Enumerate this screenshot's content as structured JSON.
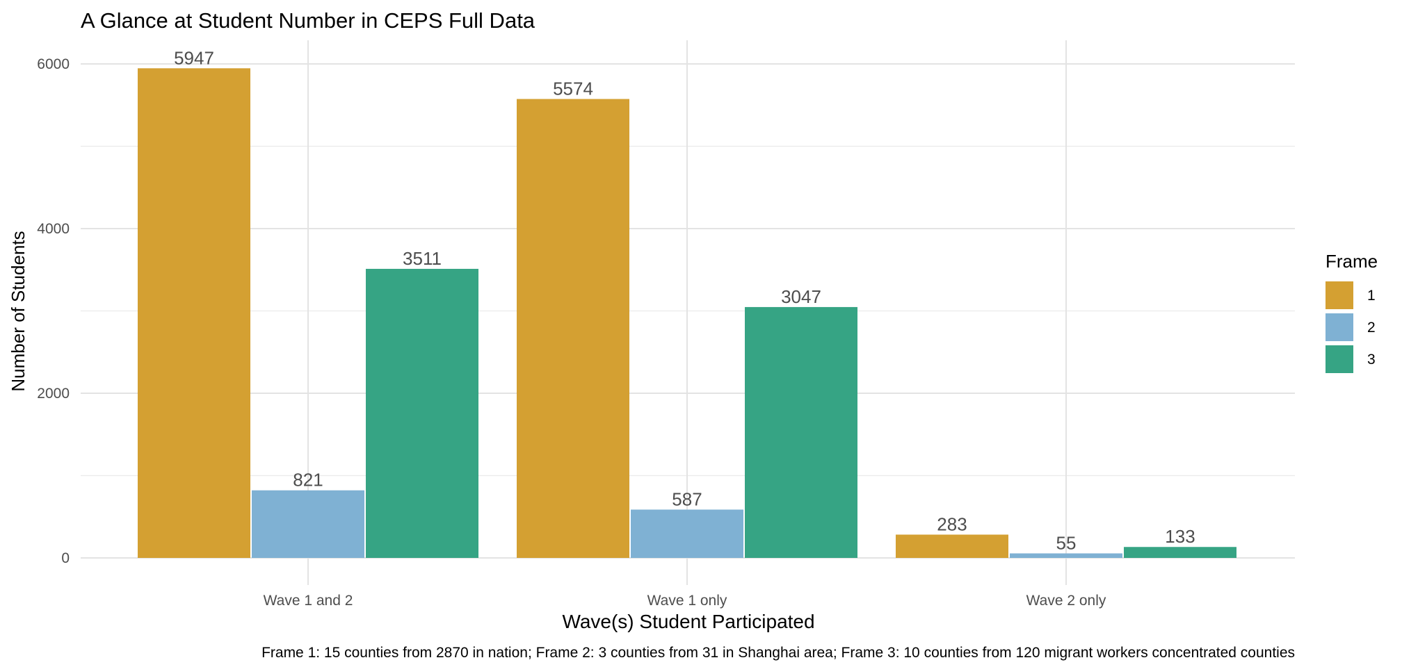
{
  "chart_data": {
    "type": "bar",
    "title": "A Glance at Student Number in CEPS Full Data",
    "xlabel": "Wave(s) Student Participated",
    "ylabel": "Number of Students",
    "caption": "Frame 1: 15 counties from 2870 in nation; Frame 2: 3 counties from 31 in Shanghai area; Frame 3: 10 counties from 120 migrant workers concentrated counties",
    "categories": [
      "Wave 1 and 2",
      "Wave 1 only",
      "Wave 2 only"
    ],
    "series": [
      {
        "name": "1",
        "color": "#D4A032",
        "values": [
          5947,
          5574,
          283
        ]
      },
      {
        "name": "2",
        "color": "#7FB1D3",
        "values": [
          821,
          587,
          55
        ]
      },
      {
        "name": "3",
        "color": "#36A484",
        "values": [
          3511,
          3047,
          133
        ]
      }
    ],
    "ylim": [
      0,
      6000
    ],
    "yticks": [
      0,
      2000,
      4000,
      6000
    ],
    "yticks_minor": [
      1000,
      3000,
      5000
    ],
    "grid": true,
    "legend": {
      "title": "Frame",
      "position": "right"
    }
  }
}
